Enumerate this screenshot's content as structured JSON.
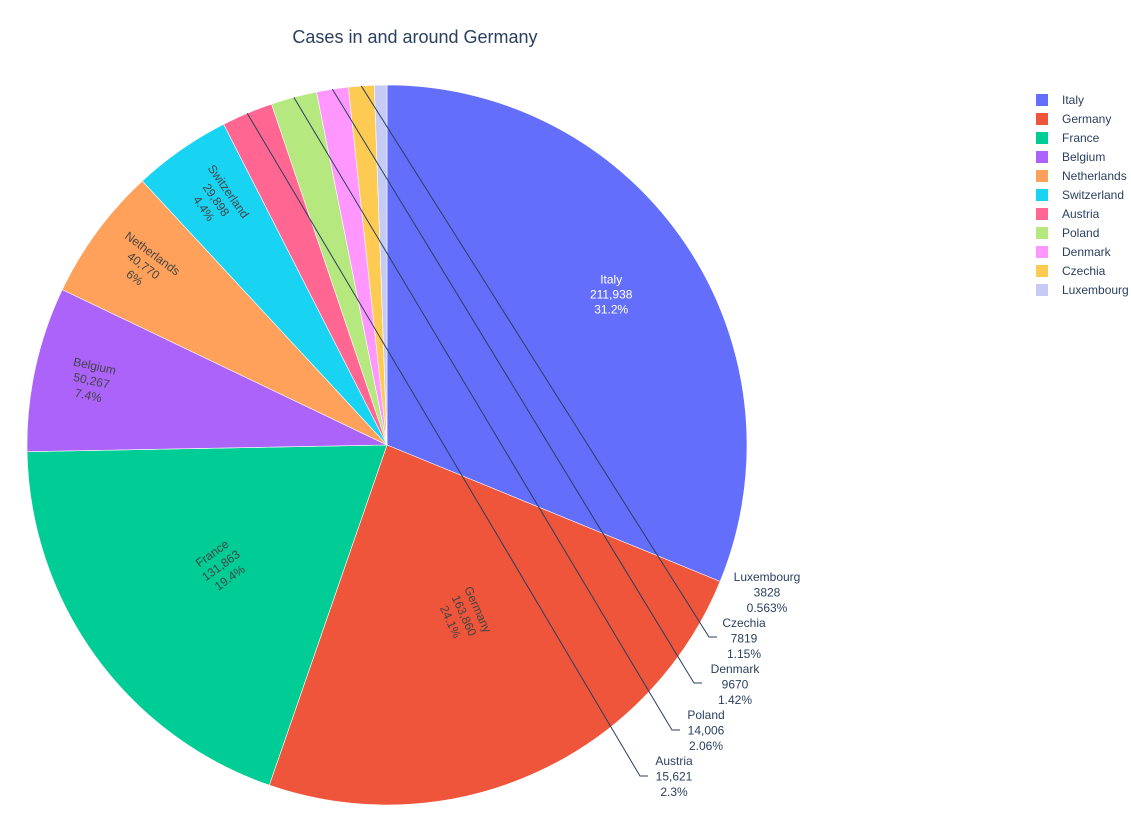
{
  "chart_data": {
    "type": "pie",
    "title": "Cases in and around Germany",
    "legend_position": "right",
    "slices": [
      {
        "label": "Italy",
        "value": 211938,
        "value_text": "211,938",
        "percent_text": "31.2%",
        "color": "#636efa"
      },
      {
        "label": "Germany",
        "value": 163860,
        "value_text": "163,860",
        "percent_text": "24.1%",
        "color": "#EF553B"
      },
      {
        "label": "France",
        "value": 131863,
        "value_text": "131,863",
        "percent_text": "19.4%",
        "color": "#00cc96"
      },
      {
        "label": "Belgium",
        "value": 50267,
        "value_text": "50,267",
        "percent_text": "7.4%",
        "color": "#ab63fa"
      },
      {
        "label": "Netherlands",
        "value": 40770,
        "value_text": "40,770",
        "percent_text": "6%",
        "color": "#FFA15A"
      },
      {
        "label": "Switzerland",
        "value": 29898,
        "value_text": "29,898",
        "percent_text": "4.4%",
        "color": "#19d3f3"
      },
      {
        "label": "Austria",
        "value": 15621,
        "value_text": "15,621",
        "percent_text": "2.3%",
        "color": "#FF6692"
      },
      {
        "label": "Poland",
        "value": 14006,
        "value_text": "14,006",
        "percent_text": "2.06%",
        "color": "#B6E880"
      },
      {
        "label": "Denmark",
        "value": 9670,
        "value_text": "9670",
        "percent_text": "1.42%",
        "color": "#FF97FF"
      },
      {
        "label": "Czechia",
        "value": 7819,
        "value_text": "7819",
        "percent_text": "1.15%",
        "color": "#FECB52"
      },
      {
        "label": "Luxembourg",
        "value": 3828,
        "value_text": "3828",
        "percent_text": "0.563%",
        "color": "#c6cbf5"
      }
    ]
  }
}
